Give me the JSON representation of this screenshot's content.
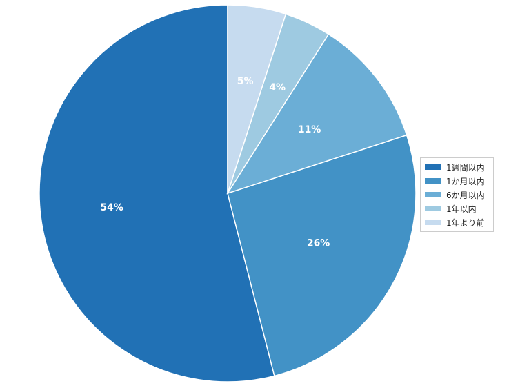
{
  "chart_data": {
    "type": "pie",
    "title": "",
    "categories": [
      "1週間以内",
      "1か月以内",
      "6か月以内",
      "1年以内",
      "1年より前"
    ],
    "values": [
      54,
      26,
      11,
      4,
      5
    ],
    "value_labels": [
      "54%",
      "26%",
      "11%",
      "4%",
      "5%"
    ],
    "colors": [
      "#2171b5",
      "#4292c6",
      "#6baed6",
      "#9ecae1",
      "#c6dbef"
    ],
    "start_angle": "top",
    "direction": "counterclockwise",
    "legend": {
      "placement": "right",
      "items": [
        {
          "label": "1週間以内",
          "color": "#2171b5"
        },
        {
          "label": "1か月以内",
          "color": "#4292c6"
        },
        {
          "label": "6か月以内",
          "color": "#6baed6"
        },
        {
          "label": "1年以内",
          "color": "#9ecae1"
        },
        {
          "label": "1年より前",
          "color": "#c6dbef"
        }
      ]
    }
  }
}
